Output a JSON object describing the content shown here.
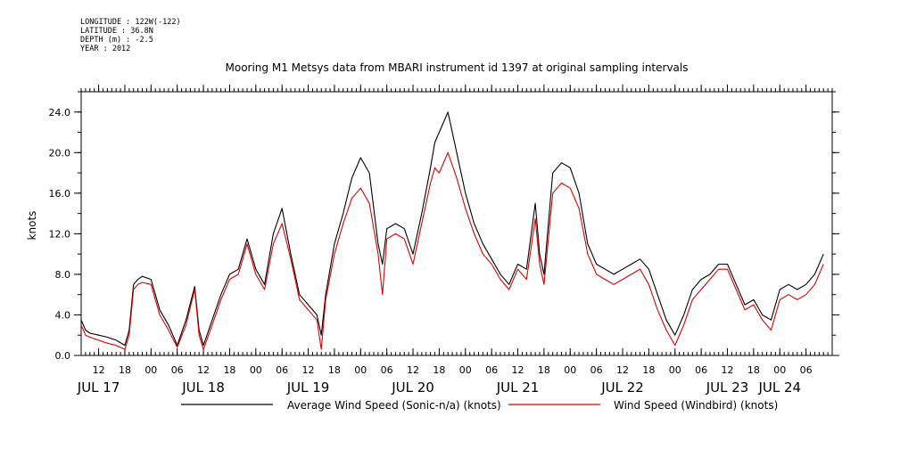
{
  "header": {
    "longitude": "LONGITUDE : 122W(-122)",
    "latitude": "LATITUDE : 36.8N",
    "depth": "DEPTH (m) : -2.5",
    "year": "YEAR : 2012"
  },
  "chart_data": {
    "type": "line",
    "title": "Mooring M1 Metsys data from MBARI instrument id 1397 at original sampling intervals",
    "ylabel": "knots",
    "xlabel": "",
    "ylim": [
      0,
      26
    ],
    "yticks": [
      0,
      4,
      8,
      12,
      16,
      20,
      24
    ],
    "ytick_labels": [
      "0.0",
      "4.0",
      "8.0",
      "12.0",
      "16.0",
      "20.0",
      "24.0"
    ],
    "xlim": [
      8,
      180
    ],
    "hour_ticks": [
      {
        "x": 12,
        "label": "12"
      },
      {
        "x": 18,
        "label": "18"
      },
      {
        "x": 24,
        "label": "00"
      },
      {
        "x": 30,
        "label": "06"
      },
      {
        "x": 36,
        "label": "12"
      },
      {
        "x": 42,
        "label": "18"
      },
      {
        "x": 48,
        "label": "00"
      },
      {
        "x": 54,
        "label": "06"
      },
      {
        "x": 60,
        "label": "12"
      },
      {
        "x": 66,
        "label": "18"
      },
      {
        "x": 72,
        "label": "00"
      },
      {
        "x": 78,
        "label": "06"
      },
      {
        "x": 84,
        "label": "12"
      },
      {
        "x": 90,
        "label": "18"
      },
      {
        "x": 96,
        "label": "00"
      },
      {
        "x": 102,
        "label": "06"
      },
      {
        "x": 108,
        "label": "12"
      },
      {
        "x": 114,
        "label": "18"
      },
      {
        "x": 120,
        "label": "00"
      },
      {
        "x": 126,
        "label": "06"
      },
      {
        "x": 132,
        "label": "12"
      },
      {
        "x": 138,
        "label": "18"
      },
      {
        "x": 144,
        "label": "00"
      },
      {
        "x": 150,
        "label": "06"
      },
      {
        "x": 156,
        "label": "12"
      },
      {
        "x": 162,
        "label": "18"
      },
      {
        "x": 168,
        "label": "00"
      },
      {
        "x": 174,
        "label": "06"
      }
    ],
    "day_labels": [
      {
        "x": 12,
        "label": "JUL 17"
      },
      {
        "x": 36,
        "label": "JUL 18"
      },
      {
        "x": 60,
        "label": "JUL 19"
      },
      {
        "x": 84,
        "label": "JUL 20"
      },
      {
        "x": 108,
        "label": "JUL 21"
      },
      {
        "x": 132,
        "label": "JUL 22"
      },
      {
        "x": 156,
        "label": "JUL 23"
      },
      {
        "x": 168,
        "label": "JUL 24"
      }
    ],
    "x_units": "hours since JUL 17 00:00 2012",
    "series": [
      {
        "name": "Average Wind Speed (Sonic-n/a) (knots)",
        "color": "#000000",
        "x": [
          8,
          9,
          10,
          12,
          14,
          16,
          18,
          19,
          20,
          21,
          22,
          24,
          26,
          28,
          30,
          32,
          34,
          35,
          36,
          38,
          40,
          42,
          44,
          46,
          48,
          50,
          52,
          54,
          56,
          58,
          60,
          62,
          63,
          64,
          66,
          68,
          70,
          72,
          74,
          76,
          77,
          78,
          80,
          82,
          84,
          86,
          88,
          89,
          90,
          92,
          94,
          96,
          98,
          100,
          102,
          104,
          106,
          108,
          110,
          112,
          113,
          114,
          116,
          118,
          120,
          122,
          124,
          126,
          128,
          130,
          132,
          134,
          136,
          138,
          140,
          142,
          144,
          146,
          148,
          150,
          152,
          154,
          156,
          158,
          160,
          162,
          164,
          166,
          168,
          170,
          172,
          174,
          176,
          178
        ],
        "y": [
          3.5,
          2.5,
          2.2,
          2.0,
          1.8,
          1.5,
          1.0,
          2.5,
          7.0,
          7.5,
          7.8,
          7.5,
          4.5,
          3.0,
          1.0,
          3.5,
          6.8,
          2.5,
          1.0,
          3.5,
          6.0,
          8.0,
          8.5,
          11.5,
          8.5,
          7.0,
          12.0,
          14.5,
          10.0,
          6.0,
          5.0,
          4.0,
          2.0,
          6.0,
          11.0,
          14.0,
          17.5,
          19.5,
          18.0,
          11.0,
          9.0,
          12.5,
          13.0,
          12.5,
          10.0,
          14.0,
          18.5,
          21.0,
          22.0,
          24.0,
          20.0,
          16.0,
          13.0,
          11.0,
          9.5,
          8.0,
          7.0,
          9.0,
          8.5,
          15.0,
          10.0,
          8.0,
          18.0,
          19.0,
          18.5,
          16.0,
          11.0,
          9.0,
          8.5,
          8.0,
          8.5,
          9.0,
          9.5,
          8.5,
          6.0,
          3.5,
          2.0,
          4.0,
          6.5,
          7.5,
          8.0,
          9.0,
          9.0,
          7.0,
          5.0,
          5.5,
          4.0,
          3.5,
          6.5,
          7.0,
          6.5,
          7.0,
          8.0,
          10.0
        ]
      },
      {
        "name": "Wind Speed (Windbird) (knots)",
        "color": "#dd0000",
        "x": [
          8,
          9,
          10,
          12,
          14,
          16,
          18,
          19,
          20,
          21,
          22,
          24,
          26,
          28,
          30,
          32,
          34,
          35,
          36,
          38,
          40,
          42,
          44,
          46,
          48,
          50,
          52,
          54,
          56,
          58,
          60,
          62,
          63,
          64,
          66,
          68,
          70,
          72,
          74,
          76,
          77,
          78,
          80,
          82,
          84,
          86,
          88,
          89,
          90,
          92,
          94,
          96,
          98,
          100,
          102,
          104,
          106,
          108,
          110,
          112,
          113,
          114,
          116,
          118,
          120,
          122,
          124,
          126,
          128,
          130,
          132,
          134,
          136,
          138,
          140,
          142,
          144,
          146,
          148,
          150,
          152,
          154,
          156,
          158,
          160,
          162,
          164,
          166,
          168,
          170,
          172,
          174,
          176,
          178
        ],
        "y": [
          3.0,
          2.0,
          1.8,
          1.5,
          1.2,
          1.0,
          0.6,
          2.0,
          6.5,
          7.0,
          7.2,
          7.0,
          4.0,
          2.5,
          0.8,
          3.0,
          6.5,
          2.0,
          0.6,
          3.0,
          5.5,
          7.5,
          8.0,
          11.0,
          8.0,
          6.5,
          11.0,
          13.0,
          9.5,
          5.5,
          4.5,
          3.5,
          0.6,
          5.5,
          10.0,
          13.0,
          15.5,
          16.5,
          15.0,
          10.0,
          6.0,
          11.5,
          12.0,
          11.5,
          9.0,
          13.0,
          17.0,
          18.5,
          18.0,
          20.0,
          17.5,
          14.5,
          12.0,
          10.0,
          9.0,
          7.5,
          6.5,
          8.5,
          7.5,
          13.5,
          9.0,
          7.0,
          16.0,
          17.0,
          16.5,
          14.5,
          10.0,
          8.0,
          7.5,
          7.0,
          7.5,
          8.0,
          8.5,
          7.0,
          4.5,
          2.5,
          1.0,
          3.0,
          5.5,
          6.5,
          7.5,
          8.5,
          8.5,
          6.5,
          4.5,
          5.0,
          3.5,
          2.5,
          5.5,
          6.0,
          5.5,
          6.0,
          7.0,
          9.0
        ]
      }
    ],
    "legend_position": "bottom"
  }
}
